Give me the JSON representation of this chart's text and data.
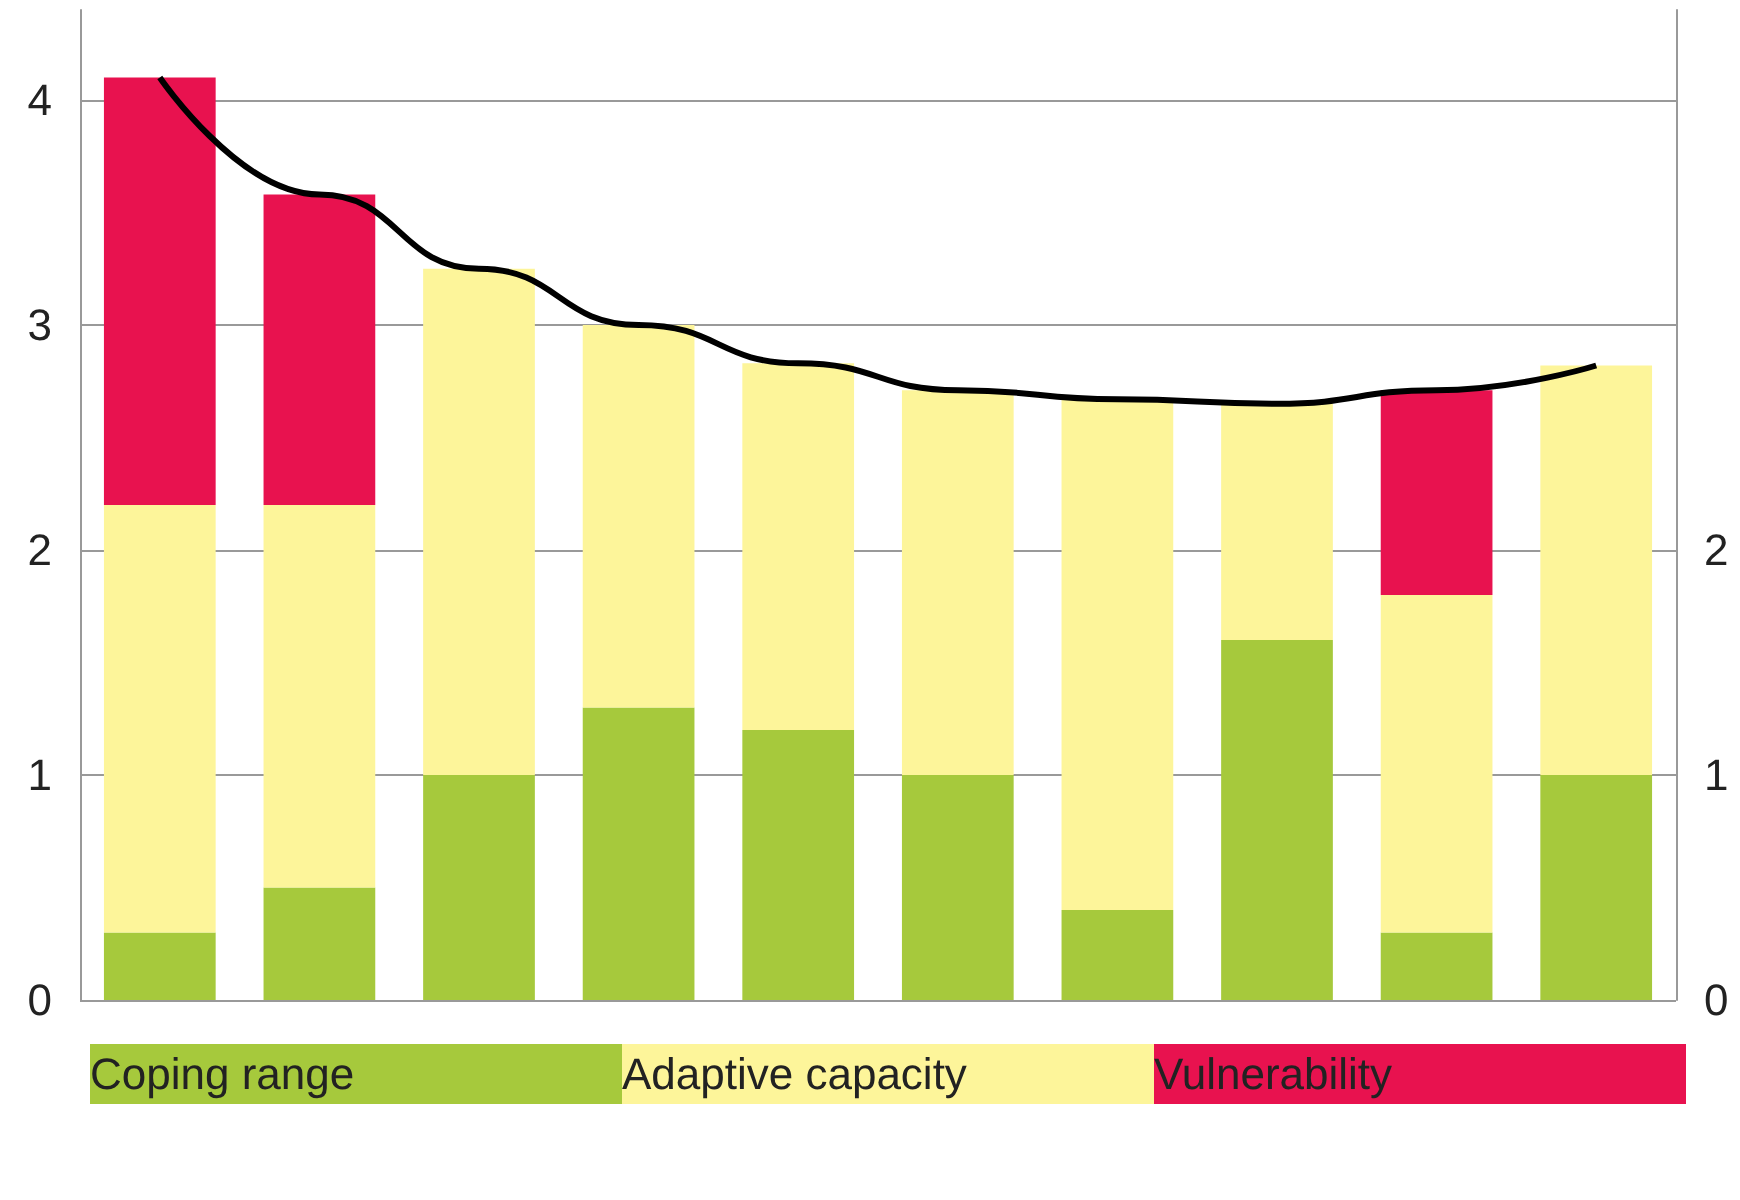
{
  "chart_data": {
    "type": "bar",
    "stacked": true,
    "categories": [
      null,
      null,
      null,
      null,
      null,
      null,
      null,
      null,
      null,
      null
    ],
    "series": [
      {
        "name": "Coping range",
        "color": "#a6c93c",
        "values": [
          0.3,
          0.5,
          1.0,
          1.3,
          1.2,
          1.0,
          0.4,
          1.6,
          0.3,
          1.0
        ]
      },
      {
        "name": "Adaptive capacity",
        "color": "#fdf59a",
        "values": [
          1.9,
          1.7,
          2.25,
          1.7,
          1.63,
          1.71,
          2.27,
          1.05,
          1.5,
          1.82
        ]
      },
      {
        "name": "Vulnerability",
        "color": "#e8124f",
        "values": [
          1.9,
          1.38,
          0,
          0,
          0,
          0,
          0,
          0,
          0.91,
          0
        ]
      },
      {
        "type": "line",
        "color": "#000000",
        "values": [
          4.1,
          3.58,
          3.25,
          3.0,
          2.83,
          2.71,
          2.67,
          2.65,
          2.71,
          2.82
        ]
      }
    ],
    "ylim": [
      0,
      4.4
    ],
    "yticks": [
      0,
      1,
      2,
      3,
      4
    ],
    "y2lim": [
      0,
      4.4
    ],
    "y2ticks": [
      0,
      1,
      2
    ],
    "grid": "y",
    "legend": "bottom",
    "marker": "none"
  }
}
